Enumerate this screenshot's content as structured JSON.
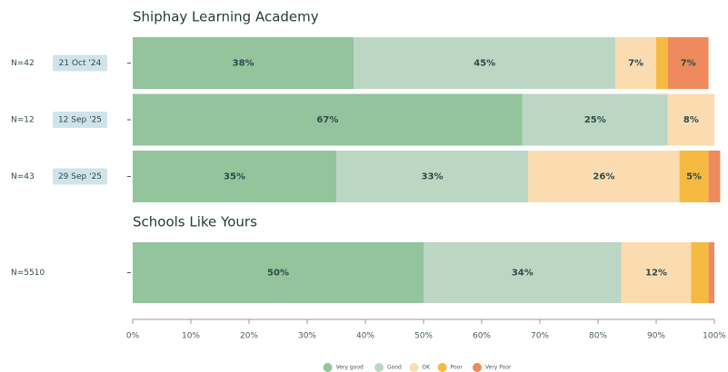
{
  "chart_data": [
    {
      "type": "bar",
      "orientation": "horizontal",
      "stacked": true,
      "title": "Shiphay Learning Academy",
      "categories": [
        "N=42",
        "N=12",
        "N=43"
      ],
      "dates": [
        "21 Oct '24",
        "12 Sep '25",
        "29 Sep '25"
      ],
      "series": [
        {
          "color": "#93c49c",
          "values": [
            38,
            67,
            35
          ],
          "value_labels": [
            "38%",
            "67%",
            "35%"
          ]
        },
        {
          "color": "#bcd6c4",
          "values": [
            45,
            25,
            33
          ],
          "value_labels": [
            "45%",
            "25%",
            "33%"
          ]
        },
        {
          "color": "#fbdcb0",
          "values": [
            7,
            8,
            26
          ],
          "value_labels": [
            "7%",
            "8%",
            "26%"
          ]
        },
        {
          "color": "#f6b942",
          "values": [
            2,
            0,
            5
          ],
          "value_labels": [
            null,
            null,
            "5%"
          ]
        },
        {
          "color": "#ee8a5d",
          "values": [
            7,
            0,
            2
          ],
          "value_labels": [
            "7%",
            null,
            null
          ]
        }
      ]
    },
    {
      "type": "bar",
      "orientation": "horizontal",
      "stacked": true,
      "title": "Schools Like Yours",
      "categories": [
        "N=5510"
      ],
      "series": [
        {
          "name": "Very good",
          "color": "#93c49c",
          "values": [
            50
          ],
          "value_labels": [
            "50%"
          ]
        },
        {
          "name": "Good",
          "color": "#bcd6c4",
          "values": [
            34
          ],
          "value_labels": [
            "34%"
          ]
        },
        {
          "name": "OK",
          "color": "#fbdcb0",
          "values": [
            12
          ],
          "value_labels": [
            "12%"
          ]
        },
        {
          "name": "Poor",
          "color": "#f6b942",
          "values": [
            3
          ],
          "value_labels": [
            null
          ]
        },
        {
          "name": "Very Poor",
          "color": "#ee8a5d",
          "values": [
            1
          ],
          "value_labels": [
            null
          ]
        }
      ],
      "xlim": [
        0,
        100
      ],
      "xticks": [
        {
          "value": 0,
          "label": "0%"
        },
        {
          "value": 10,
          "label": "10%"
        },
        {
          "value": 20,
          "label": "20%"
        },
        {
          "value": 30,
          "label": "30%"
        },
        {
          "value": 40,
          "label": "40%"
        },
        {
          "value": 50,
          "label": "50%"
        },
        {
          "value": 60,
          "label": "60%"
        },
        {
          "value": 70,
          "label": "70%"
        },
        {
          "value": 80,
          "label": "80%"
        },
        {
          "value": 90,
          "label": "90%"
        },
        {
          "value": 100,
          "label": "100%"
        }
      ],
      "legend": "bottom"
    }
  ]
}
